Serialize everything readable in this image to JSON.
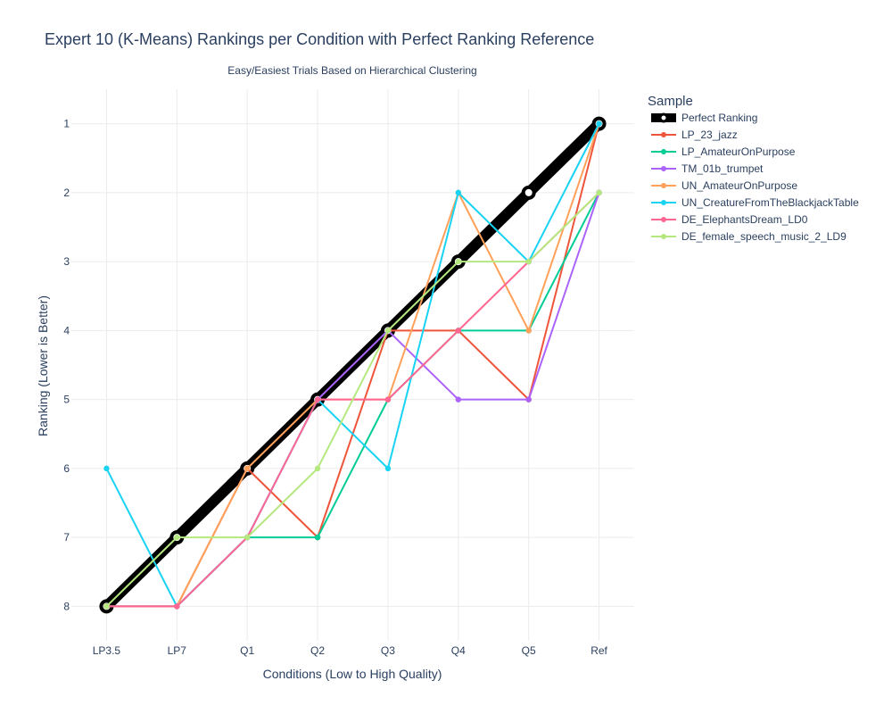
{
  "chart_data": {
    "type": "line",
    "title": "Expert 10 (K-Means) Rankings per Condition with Perfect Ranking Reference",
    "subtitle": "Easy/Easiest Trials Based on Hierarchical Clustering",
    "xlabel": "Conditions (Low to High Quality)",
    "ylabel": "Ranking (Lower is Better)",
    "categories": [
      "LP3.5",
      "LP7",
      "Q1",
      "Q2",
      "Q3",
      "Q4",
      "Q5",
      "Ref"
    ],
    "y_ticks": [
      1,
      2,
      3,
      4,
      5,
      6,
      7,
      8
    ],
    "ylim": [
      8.5,
      0.5
    ],
    "y_reversed": true,
    "grid": true,
    "legend": {
      "title": "Sample",
      "placement": "right"
    },
    "series": [
      {
        "name": "LP_23_jazz",
        "color": "#EF553B",
        "values": [
          8,
          8,
          6,
          7,
          4,
          4,
          5,
          1
        ]
      },
      {
        "name": "LP_AmateurOnPurpose",
        "color": "#00CC96",
        "values": [
          8,
          8,
          7,
          7,
          5,
          4,
          4,
          2
        ]
      },
      {
        "name": "TM_01b_trumpet",
        "color": "#AB63FA",
        "values": [
          8,
          8,
          7,
          5,
          4,
          5,
          5,
          2
        ]
      },
      {
        "name": "UN_AmateurOnPurpose",
        "color": "#FFA15A",
        "values": [
          8,
          8,
          6,
          5,
          5,
          2,
          4,
          1
        ]
      },
      {
        "name": "UN_CreatureFromTheBlackjackTable",
        "color": "#19D3F3",
        "values": [
          6,
          8,
          7,
          5,
          6,
          2,
          3,
          1
        ]
      },
      {
        "name": "DE_ElephantsDream_LD0",
        "color": "#FF6692",
        "values": [
          8,
          8,
          7,
          5,
          5,
          4,
          3,
          2
        ]
      },
      {
        "name": "DE_female_speech_music_2_LD9",
        "color": "#B6E880",
        "values": [
          8,
          7,
          7,
          6,
          4,
          3,
          3,
          2
        ]
      }
    ],
    "reference": {
      "name": "Perfect Ranking",
      "color": "#000000",
      "values": [
        8,
        7,
        6,
        5,
        4,
        3,
        2,
        1
      ]
    }
  }
}
